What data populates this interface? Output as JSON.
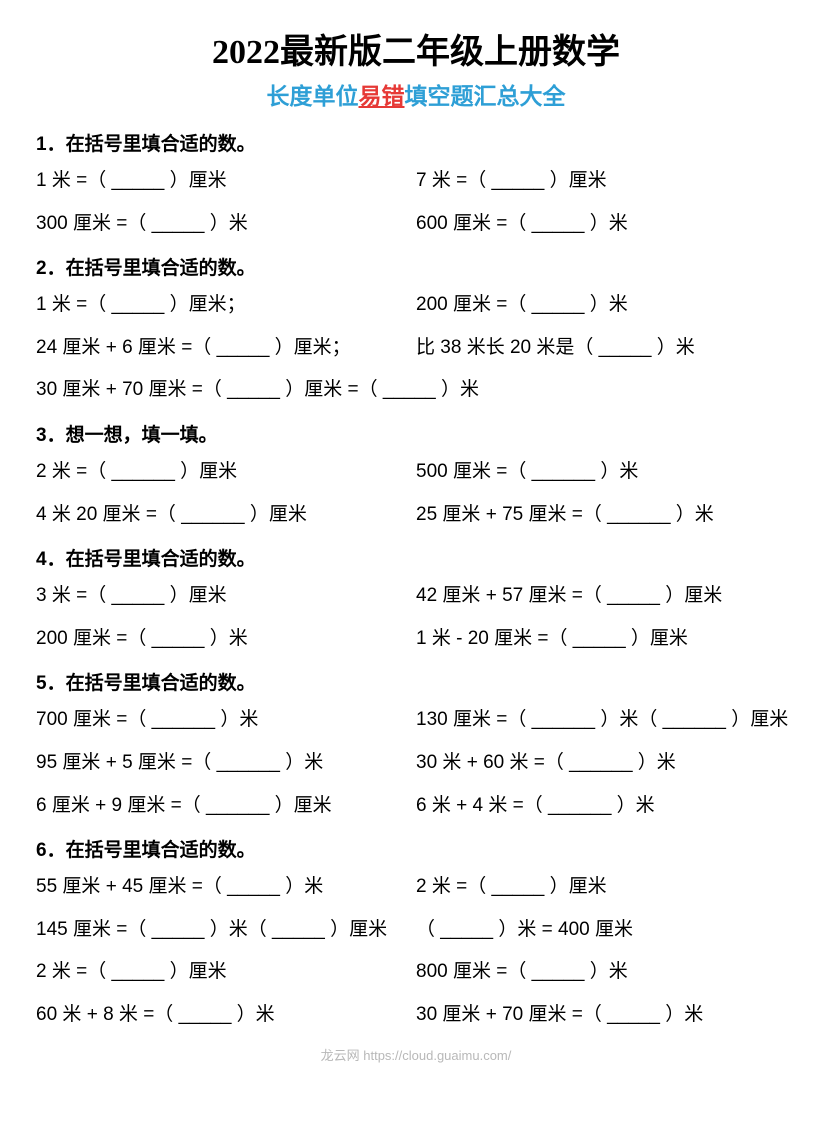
{
  "title": "2022最新版二年级上册数学",
  "subtitle_part1": "长度单位",
  "subtitle_part2": "易错",
  "subtitle_part3": "填空题汇总大全",
  "subtitle_color_blue": "#2e9fd6",
  "subtitle_color_red": "#e63936",
  "sections": [
    {
      "header": "1．在括号里填合适的数。",
      "rows": [
        {
          "left": "1 米 =（ _____ ）厘米",
          "right": "7 米 =（ _____ ）厘米"
        },
        {
          "left": "300 厘米 =（ _____ ）米",
          "right": "600 厘米 =（ _____ ）米"
        }
      ]
    },
    {
      "header": "2．在括号里填合适的数。",
      "rows": [
        {
          "left": "1 米 =（ _____ ）厘米；",
          "right": "200 厘米 =（ _____ ）米"
        },
        {
          "left": "24 厘米 + 6 厘米 =（ _____ ）厘米；",
          "right": "比 38 米长 20 米是（ _____ ）米"
        },
        {
          "full": "30 厘米 + 70 厘米 =（ _____ ）厘米 =（ _____ ）米"
        }
      ]
    },
    {
      "header": "3．想一想，填一填。",
      "rows": [
        {
          "left": "2 米 =（ ______ ）厘米",
          "right": "500 厘米 =（ ______ ）米"
        },
        {
          "left": "4 米 20 厘米 =（ ______ ）厘米",
          "right": "25 厘米 + 75 厘米 =（ ______ ）米"
        }
      ]
    },
    {
      "header": "4．在括号里填合适的数。",
      "rows": [
        {
          "left": "3 米 =（ _____ ）厘米",
          "right": "42 厘米 + 57 厘米 =（ _____ ）厘米"
        },
        {
          "left": "200 厘米 =（ _____ ）米",
          "right": "1 米 - 20 厘米 =（ _____ ）厘米"
        }
      ]
    },
    {
      "header": "5．在括号里填合适的数。",
      "rows": [
        {
          "left": "700 厘米 =（ ______ ）米",
          "right": "130 厘米 =（ ______ ）米（ ______ ）厘米"
        },
        {
          "left": "95 厘米 + 5 厘米 =（ ______ ）米",
          "right": "30 米 + 60 米 =（ ______ ）米"
        },
        {
          "left": "6 厘米 + 9 厘米 =（ ______ ）厘米",
          "right": "6 米 + 4 米 =（ ______ ）米"
        }
      ]
    },
    {
      "header": "6．在括号里填合适的数。",
      "rows": [
        {
          "left": "55 厘米 + 45 厘米 =（ _____ ）米",
          "right": "2 米 =（ _____ ）厘米"
        },
        {
          "left": "145 厘米 =（ _____ ）米（ _____ ）厘米",
          "right": "（ _____ ）米 = 400 厘米"
        },
        {
          "left": "2 米 =（ _____ ）厘米",
          "right": "800 厘米 =（ _____ ）米"
        },
        {
          "left": "60 米 + 8 米 =（ _____ ）米",
          "right": "30 厘米 + 70 厘米 =（ _____ ）米"
        }
      ]
    }
  ],
  "footer": "龙云网 https://cloud.guaimu.com/"
}
